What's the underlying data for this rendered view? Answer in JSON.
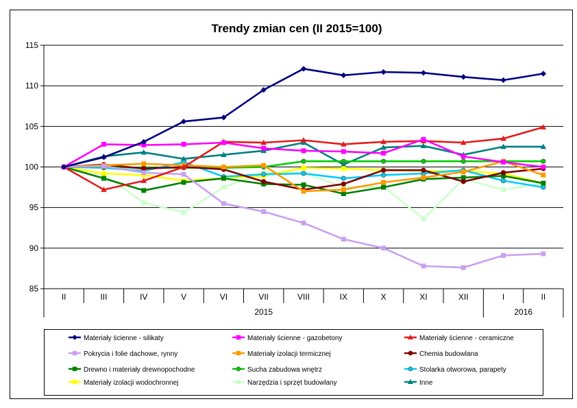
{
  "chart_data": {
    "type": "line",
    "title": "Trendy zmian cen (II 2015=100)",
    "categories": [
      "II",
      "III",
      "IV",
      "V",
      "VI",
      "VII",
      "VIII",
      "IX",
      "X",
      "XI",
      "XII",
      "I",
      "II"
    ],
    "year_groups": [
      {
        "label": "2015",
        "from": 0,
        "to": 10
      },
      {
        "label": "2016",
        "from": 11,
        "to": 12
      }
    ],
    "ylim": [
      85,
      115
    ],
    "yticks": [
      85,
      90,
      95,
      100,
      105,
      110,
      115
    ],
    "grid": true,
    "legend_position": "bottom",
    "series": [
      {
        "name": "Materiały ścienne - silikaty",
        "color": "#000080",
        "marker": "diamond",
        "values": [
          100,
          101.2,
          103.1,
          105.6,
          106.1,
          109.5,
          112.1,
          111.3,
          111.7,
          111.6,
          111.1,
          110.7,
          111.5
        ]
      },
      {
        "name": "Materiały ścienne - gazobetony",
        "color": "#FF00FF",
        "marker": "square",
        "values": [
          100,
          102.8,
          102.7,
          102.8,
          103.0,
          102.3,
          102.0,
          101.9,
          101.7,
          103.4,
          101.3,
          100.6,
          100.0
        ]
      },
      {
        "name": "Materiały ścienne - ceramiczne",
        "color": "#E41A1C",
        "marker": "triangle",
        "values": [
          100,
          97.2,
          98.3,
          100.0,
          103.1,
          103.0,
          103.3,
          102.8,
          103.1,
          103.2,
          103.0,
          103.5,
          104.9
        ]
      },
      {
        "name": "Pokrycia i folie dachowe, rynny",
        "color": "#C9A0F0",
        "marker": "square",
        "values": [
          100,
          100.1,
          99.3,
          99.1,
          95.5,
          94.5,
          93.1,
          91.1,
          90.0,
          87.8,
          87.6,
          89.1,
          89.3
        ]
      },
      {
        "name": "Materiały izolacji termicznej",
        "color": "#FF9900",
        "marker": "square",
        "values": [
          100,
          100.2,
          100.4,
          100.2,
          100.0,
          100.2,
          97.0,
          97.2,
          98.1,
          98.7,
          99.4,
          100.7,
          99.0
        ]
      },
      {
        "name": "Chemia budowlana",
        "color": "#800000",
        "marker": "circle",
        "values": [
          100,
          100.3,
          99.8,
          100.0,
          99.7,
          98.2,
          97.2,
          97.9,
          99.6,
          99.6,
          98.2,
          99.3,
          99.8
        ]
      },
      {
        "name": "Drewno i materiały drewnopochodne",
        "color": "#008000",
        "marker": "square",
        "values": [
          100,
          98.6,
          97.1,
          98.1,
          98.6,
          97.9,
          97.8,
          96.7,
          97.5,
          98.5,
          98.7,
          98.9,
          98.0
        ]
      },
      {
        "name": "Sucha zabudowa wnętrz",
        "color": "#00CC00",
        "marker": "circle",
        "values": [
          100,
          100.0,
          99.9,
          99.9,
          99.9,
          100.0,
          100.7,
          100.7,
          100.7,
          100.7,
          100.7,
          100.7,
          100.7
        ]
      },
      {
        "name": "Stolarka otworowa, parapety",
        "color": "#00CCFF",
        "marker": "circle",
        "values": [
          100,
          99.9,
          99.5,
          100.6,
          98.8,
          99.1,
          99.2,
          98.6,
          99.0,
          99.2,
          99.6,
          98.3,
          97.5
        ]
      },
      {
        "name": "Materiały izolacji wodochronnej",
        "color": "#FFFF00",
        "marker": "square",
        "values": [
          100,
          99.2,
          99.0,
          98.3,
          98.6,
          98.9,
          99.9,
          99.8,
          99.6,
          99.5,
          99.5,
          99.2,
          98.0
        ]
      },
      {
        "name": "Narzędzia i sprzęt budowlany",
        "color": "#CCFFCC",
        "marker": "square",
        "values": [
          100,
          99.1,
          95.6,
          94.4,
          97.5,
          99.3,
          99.3,
          97.5,
          97.6,
          93.6,
          98.5,
          97.2,
          98.0
        ]
      },
      {
        "name": "Inne",
        "color": "#008080",
        "marker": "triangle",
        "values": [
          100,
          101.3,
          101.8,
          101.0,
          101.5,
          102.0,
          103.0,
          100.3,
          102.4,
          102.6,
          101.5,
          102.5,
          102.5
        ]
      }
    ]
  }
}
